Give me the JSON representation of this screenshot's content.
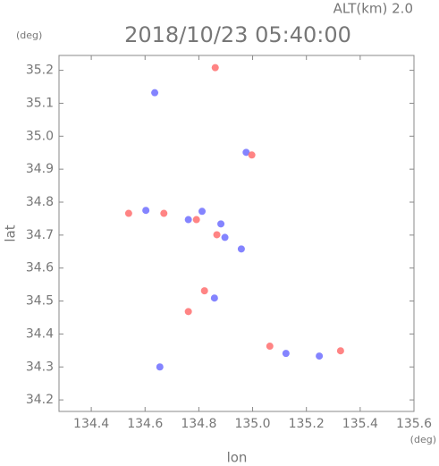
{
  "chart_data": {
    "type": "scatter",
    "title": "2018/10/23 05:40:00",
    "subtitle": "ALT(km) 2.0",
    "xlabel": "lon",
    "ylabel": "lat",
    "xunit": "(deg)",
    "yunit": "(deg)",
    "xlim": [
      134.28,
      135.6
    ],
    "ylim": [
      34.165,
      35.245
    ],
    "xticks": [
      134.4,
      134.6,
      134.8,
      {
        "value": 135,
        "label": "135.0"
      },
      135.2,
      135.4,
      135.6
    ],
    "yticks": [
      34.2,
      34.3,
      34.4,
      34.5,
      34.6,
      34.7,
      34.8,
      34.9,
      {
        "value": 35,
        "label": "35.0"
      },
      35.1,
      35.2
    ],
    "series": [
      {
        "color": "#6f6fff",
        "x": [
          134.636,
          134.812,
          134.882,
          134.958,
          134.858,
          135.124,
          135.248,
          134.655,
          134.761,
          134.603,
          134.976,
          134.897
        ],
        "y": [
          35.132,
          34.772,
          34.734,
          34.658,
          34.509,
          34.341,
          34.333,
          34.3,
          34.747,
          34.775,
          34.951,
          34.693
        ]
      },
      {
        "color": "#ff6f6f",
        "x": [
          134.861,
          135.327,
          134.997,
          134.539,
          134.791,
          134.761,
          135.064,
          134.67,
          134.867,
          134.821
        ],
        "y": [
          35.208,
          34.349,
          34.943,
          34.766,
          34.747,
          34.468,
          34.363,
          34.766,
          34.701,
          34.531
        ]
      }
    ]
  }
}
